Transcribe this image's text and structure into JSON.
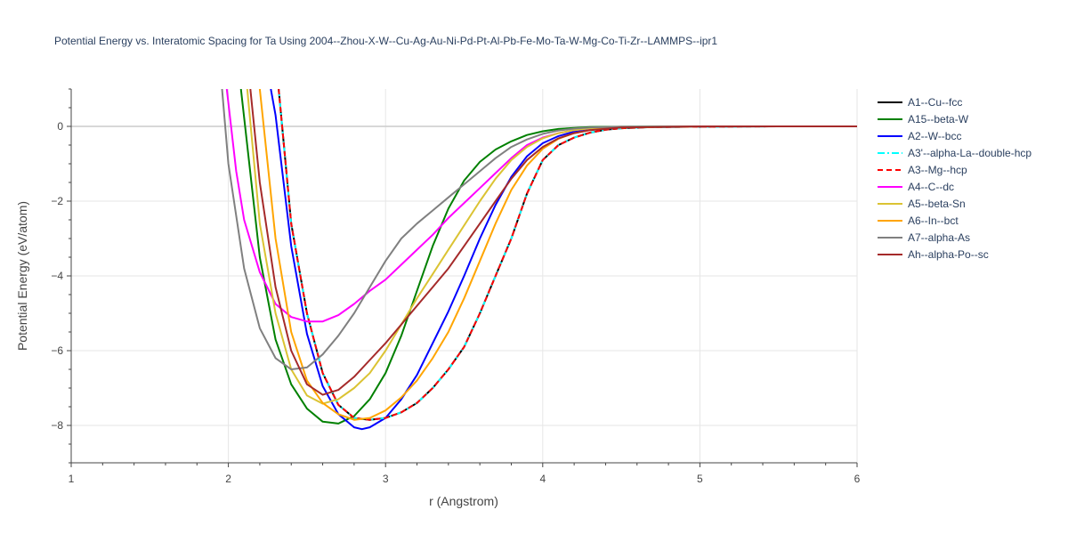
{
  "chart_data": {
    "type": "line",
    "title": "Potential Energy vs. Interatomic Spacing for Ta Using 2004--Zhou-X-W--Cu-Ag-Au-Ni-Pd-Pt-Al-Pb-Fe-Mo-Ta-W-Mg-Co-Ti-Zr--LAMMPS--ipr1",
    "xlabel": "r (Angstrom)",
    "ylabel": "Potential Energy (eV/atom)",
    "xlim": [
      1,
      6
    ],
    "ylim": [
      -9,
      1
    ],
    "xticks": [
      1,
      2,
      3,
      4,
      5,
      6
    ],
    "yticks": [
      -8,
      -6,
      -4,
      -2,
      0
    ],
    "grid": true,
    "legend_position": "right",
    "series": [
      {
        "name": "A1--Cu--fcc",
        "color": "#000000",
        "dash": "solid",
        "x": [
          2.32,
          2.4,
          2.5,
          2.6,
          2.7,
          2.8,
          2.9,
          3.0,
          3.1,
          3.2,
          3.3,
          3.4,
          3.5,
          3.6,
          3.7,
          3.8,
          3.9,
          4.0,
          4.1,
          4.2,
          4.3,
          4.4,
          4.5,
          4.7,
          5.0,
          5.5,
          6.0
        ],
        "y": [
          1.0,
          -2.6,
          -5.0,
          -6.6,
          -7.45,
          -7.8,
          -7.85,
          -7.8,
          -7.65,
          -7.4,
          -7.0,
          -6.5,
          -5.9,
          -5.0,
          -4.0,
          -3.0,
          -1.8,
          -0.9,
          -0.5,
          -0.3,
          -0.17,
          -0.09,
          -0.05,
          -0.02,
          -0.01,
          0,
          0
        ]
      },
      {
        "name": "A15--beta-W",
        "color": "#008000",
        "dash": "solid",
        "x": [
          2.08,
          2.2,
          2.3,
          2.4,
          2.5,
          2.6,
          2.7,
          2.8,
          2.9,
          3.0,
          3.1,
          3.2,
          3.3,
          3.4,
          3.5,
          3.6,
          3.7,
          3.8,
          3.9,
          4.0,
          4.1,
          4.2,
          4.3,
          4.5,
          5.0,
          5.5,
          6.0
        ],
        "y": [
          1.0,
          -3.5,
          -5.7,
          -6.9,
          -7.55,
          -7.9,
          -7.95,
          -7.75,
          -7.3,
          -6.6,
          -5.6,
          -4.4,
          -3.2,
          -2.2,
          -1.45,
          -0.95,
          -0.62,
          -0.4,
          -0.23,
          -0.13,
          -0.07,
          -0.04,
          -0.02,
          -0.01,
          0,
          0,
          0
        ]
      },
      {
        "name": "A2--W--bcc",
        "color": "#0000ff",
        "dash": "solid",
        "x": [
          2.27,
          2.3,
          2.4,
          2.5,
          2.6,
          2.7,
          2.8,
          2.85,
          2.9,
          3.0,
          3.1,
          3.2,
          3.3,
          3.4,
          3.5,
          3.6,
          3.7,
          3.8,
          3.9,
          4.0,
          4.1,
          4.2,
          4.3,
          4.4,
          4.5,
          5.0,
          6.0
        ],
        "y": [
          1.0,
          0.3,
          -3.2,
          -5.55,
          -6.95,
          -7.7,
          -8.05,
          -8.1,
          -8.05,
          -7.8,
          -7.3,
          -6.65,
          -5.8,
          -4.95,
          -4.0,
          -3.0,
          -2.1,
          -1.35,
          -0.8,
          -0.45,
          -0.26,
          -0.14,
          -0.08,
          -0.05,
          -0.03,
          0,
          0
        ]
      },
      {
        "name": "A3'--alpha-La--double-hcp",
        "color": "#00ffff",
        "dash": "dashdot",
        "x": [
          2.32,
          2.4,
          2.5,
          2.6,
          2.7,
          2.8,
          2.9,
          3.0,
          3.1,
          3.2,
          3.3,
          3.4,
          3.5,
          3.6,
          3.7,
          3.8,
          3.9,
          4.0,
          4.1,
          4.2,
          4.3,
          4.4,
          4.5,
          4.7,
          5.0,
          5.5,
          6.0
        ],
        "y": [
          1.0,
          -2.6,
          -5.0,
          -6.6,
          -7.45,
          -7.8,
          -7.85,
          -7.8,
          -7.65,
          -7.4,
          -7.0,
          -6.5,
          -5.9,
          -5.0,
          -4.0,
          -3.0,
          -1.8,
          -0.9,
          -0.5,
          -0.3,
          -0.17,
          -0.09,
          -0.05,
          -0.02,
          -0.01,
          0,
          0
        ]
      },
      {
        "name": "A3--Mg--hcp",
        "color": "#ff0000",
        "dash": "dash",
        "x": [
          2.32,
          2.4,
          2.5,
          2.6,
          2.7,
          2.8,
          2.9,
          3.0,
          3.1,
          3.2,
          3.3,
          3.4,
          3.5,
          3.6,
          3.7,
          3.8,
          3.9,
          4.0,
          4.1,
          4.2,
          4.3,
          4.4,
          4.5,
          4.7,
          5.0,
          5.5,
          6.0
        ],
        "y": [
          1.0,
          -2.6,
          -5.0,
          -6.6,
          -7.45,
          -7.8,
          -7.85,
          -7.8,
          -7.65,
          -7.4,
          -7.0,
          -6.5,
          -5.9,
          -5.0,
          -4.0,
          -3.0,
          -1.8,
          -0.9,
          -0.5,
          -0.3,
          -0.17,
          -0.09,
          -0.05,
          -0.02,
          -0.01,
          0,
          0
        ]
      },
      {
        "name": "A4--C--dc",
        "color": "#ff00ff",
        "dash": "solid",
        "x": [
          1.99,
          2.05,
          2.1,
          2.2,
          2.3,
          2.4,
          2.5,
          2.6,
          2.7,
          2.8,
          2.9,
          3.0,
          3.1,
          3.2,
          3.3,
          3.4,
          3.5,
          3.6,
          3.7,
          3.8,
          3.9,
          4.0,
          4.1,
          4.2,
          4.3,
          4.5,
          5.0,
          6.0
        ],
        "y": [
          1.0,
          -1.2,
          -2.5,
          -3.9,
          -4.75,
          -5.1,
          -5.22,
          -5.22,
          -5.05,
          -4.75,
          -4.4,
          -4.1,
          -3.7,
          -3.3,
          -2.9,
          -2.45,
          -2.05,
          -1.65,
          -1.25,
          -0.85,
          -0.5,
          -0.3,
          -0.18,
          -0.1,
          -0.05,
          -0.02,
          0,
          0
        ]
      },
      {
        "name": "A5--beta-Sn",
        "color": "#dbc333",
        "dash": "solid",
        "x": [
          2.12,
          2.2,
          2.3,
          2.4,
          2.5,
          2.6,
          2.7,
          2.8,
          2.9,
          3.0,
          3.1,
          3.2,
          3.3,
          3.4,
          3.5,
          3.6,
          3.7,
          3.8,
          3.9,
          4.0,
          4.1,
          4.2,
          4.3,
          4.5,
          5.0,
          6.0
        ],
        "y": [
          1.0,
          -2.6,
          -5.0,
          -6.5,
          -7.2,
          -7.42,
          -7.3,
          -7.0,
          -6.6,
          -6.0,
          -5.3,
          -4.6,
          -3.95,
          -3.3,
          -2.65,
          -2.0,
          -1.4,
          -0.9,
          -0.55,
          -0.32,
          -0.18,
          -0.1,
          -0.05,
          -0.02,
          0,
          0
        ]
      },
      {
        "name": "A6--In--bct",
        "color": "#ffa500",
        "dash": "solid",
        "x": [
          2.2,
          2.3,
          2.4,
          2.5,
          2.6,
          2.7,
          2.8,
          2.9,
          3.0,
          3.1,
          3.2,
          3.3,
          3.4,
          3.5,
          3.6,
          3.7,
          3.8,
          3.9,
          4.0,
          4.1,
          4.2,
          4.3,
          4.4,
          4.5,
          5.0,
          6.0
        ],
        "y": [
          1.0,
          -3.0,
          -5.5,
          -6.8,
          -7.4,
          -7.7,
          -7.85,
          -7.8,
          -7.6,
          -7.25,
          -6.8,
          -6.2,
          -5.5,
          -4.6,
          -3.6,
          -2.6,
          -1.7,
          -1.05,
          -0.6,
          -0.33,
          -0.18,
          -0.1,
          -0.05,
          -0.03,
          0,
          0
        ]
      },
      {
        "name": "A7--alpha-As",
        "color": "#808080",
        "dash": "solid",
        "x": [
          1.96,
          2.0,
          2.1,
          2.2,
          2.3,
          2.4,
          2.5,
          2.6,
          2.7,
          2.8,
          2.9,
          3.0,
          3.1,
          3.2,
          3.3,
          3.4,
          3.5,
          3.6,
          3.7,
          3.8,
          3.9,
          4.0,
          4.1,
          4.2,
          4.3,
          4.5,
          5.0,
          6.0
        ],
        "y": [
          1.0,
          -1.0,
          -3.8,
          -5.4,
          -6.2,
          -6.5,
          -6.45,
          -6.1,
          -5.6,
          -5.0,
          -4.3,
          -3.6,
          -3.0,
          -2.6,
          -2.25,
          -1.9,
          -1.55,
          -1.2,
          -0.85,
          -0.55,
          -0.35,
          -0.2,
          -0.11,
          -0.06,
          -0.03,
          -0.01,
          0,
          0
        ]
      },
      {
        "name": "Ah--alpha-Po--sc",
        "color": "#a52a2a",
        "dash": "solid",
        "x": [
          2.14,
          2.2,
          2.3,
          2.4,
          2.5,
          2.6,
          2.7,
          2.8,
          2.9,
          3.0,
          3.1,
          3.2,
          3.3,
          3.4,
          3.5,
          3.6,
          3.7,
          3.8,
          3.9,
          4.0,
          4.1,
          4.2,
          4.3,
          4.5,
          5.0,
          6.0
        ],
        "y": [
          1.0,
          -1.5,
          -4.3,
          -6.0,
          -6.9,
          -7.18,
          -7.05,
          -6.7,
          -6.25,
          -5.8,
          -5.3,
          -4.8,
          -4.3,
          -3.8,
          -3.2,
          -2.6,
          -2.0,
          -1.4,
          -0.9,
          -0.55,
          -0.32,
          -0.18,
          -0.1,
          -0.03,
          0,
          0
        ]
      }
    ]
  }
}
